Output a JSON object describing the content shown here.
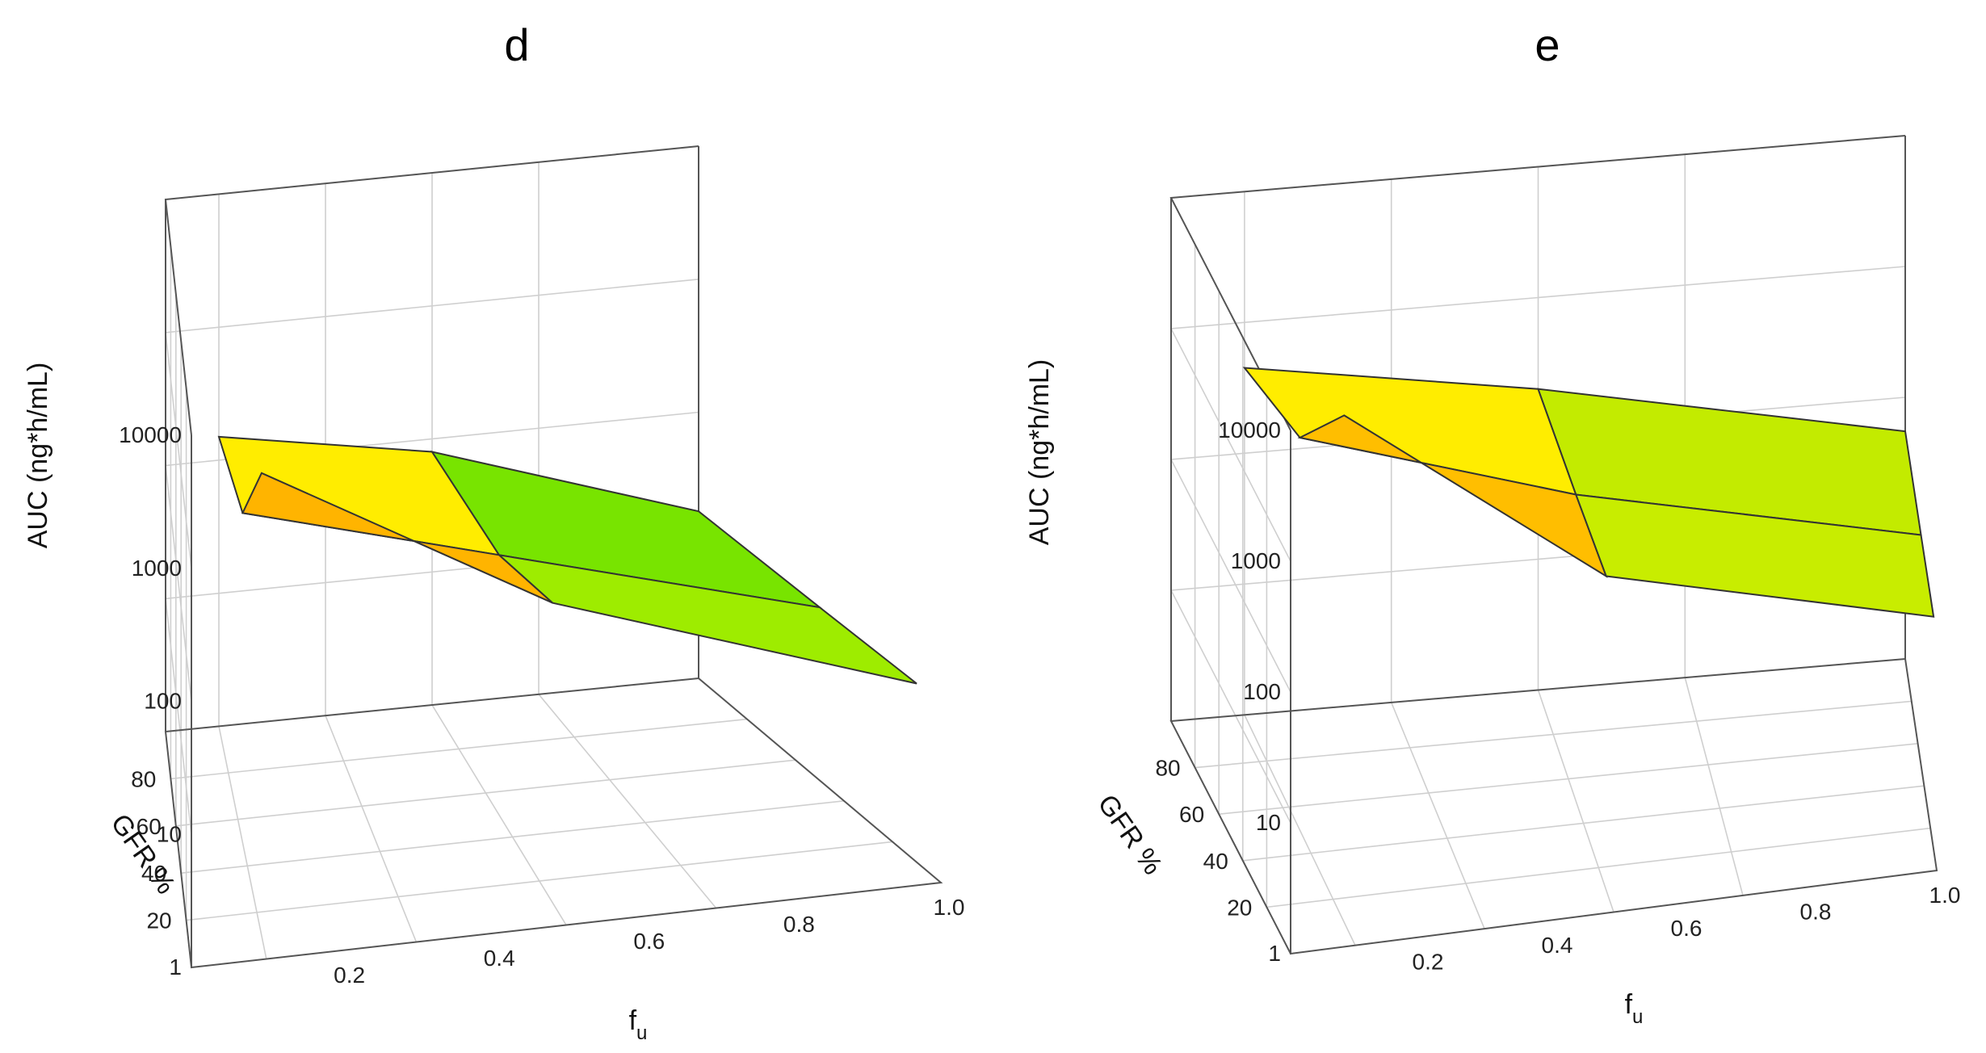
{
  "chart_data": [
    {
      "type": "surface3d",
      "panel_label": "d",
      "xlabel": "f",
      "xlabel_sub": "u",
      "ylabel": "GFR %",
      "zlabel": "AUC (ng*h/mL)",
      "x_ticks": [
        "0.2",
        "0.4",
        "0.6",
        "0.8",
        "1.0"
      ],
      "y_ticks": [
        "20",
        "40",
        "60",
        "80"
      ],
      "z_ticks": [
        "1",
        "10",
        "100",
        "1000",
        "10000"
      ],
      "x": [
        0.1,
        0.5,
        1.0
      ],
      "y": [
        10,
        50,
        100
      ],
      "z": [
        [
          3000,
          180,
          22
        ],
        [
          300,
          90,
          20
        ],
        [
          150,
          80,
          18
        ]
      ],
      "colormap": [
        "#ff0000",
        "#ff9900",
        "#ffff00",
        "#00cc00"
      ],
      "zlim": [
        1,
        10000
      ]
    },
    {
      "type": "surface3d",
      "panel_label": "e",
      "xlabel": "f",
      "xlabel_sub": "u",
      "ylabel": "GFR %",
      "zlabel": "AUC (ng*h/mL)",
      "x_ticks": [
        "0.2",
        "0.4",
        "0.6",
        "0.8",
        "1.0"
      ],
      "y_ticks": [
        "20",
        "40",
        "60",
        "80"
      ],
      "z_ticks": [
        "1",
        "10",
        "100",
        "1000",
        "10000"
      ],
      "x": [
        0.1,
        0.5,
        1.0
      ],
      "y": [
        10,
        50,
        100
      ],
      "z": [
        [
          7500,
          250,
          60
        ],
        [
          1000,
          220,
          57
        ],
        [
          450,
          200,
          55
        ]
      ],
      "colormap": [
        "#ff0000",
        "#ff9900",
        "#ffff00",
        "#99dd00"
      ],
      "zlim": [
        1,
        10000
      ]
    }
  ]
}
